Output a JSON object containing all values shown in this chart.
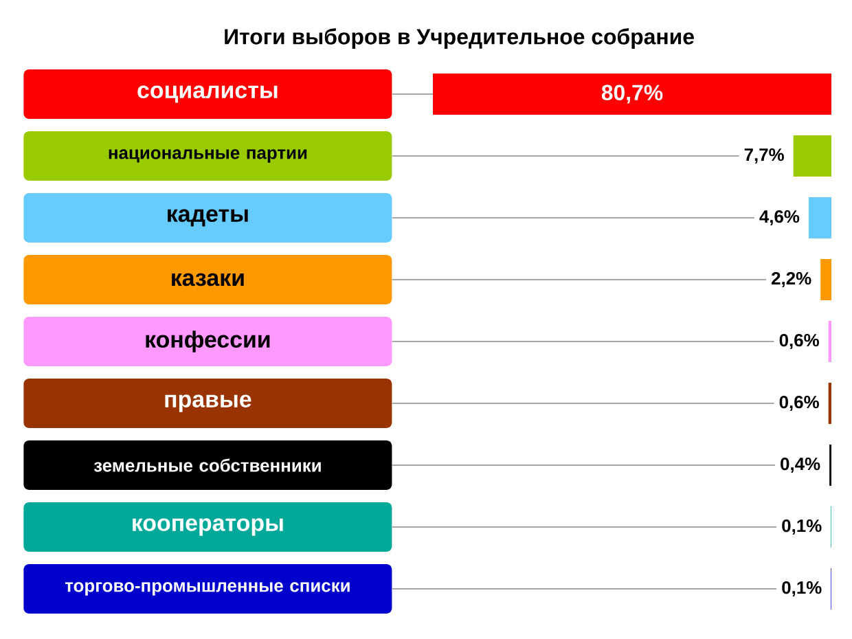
{
  "chart_data": {
    "type": "bar",
    "orientation": "horizontal",
    "title": "Итоги выборов в Учредительное собрание",
    "categories": [
      "социалисты",
      "национальные партии",
      "кадеты",
      "казаки",
      "конфессии",
      "правые",
      "земельные собственники",
      "кооператоры",
      "торгово-промышленные списки"
    ],
    "values": [
      80.7,
      7.7,
      4.6,
      2.2,
      0.6,
      0.6,
      0.4,
      0.1,
      0.1
    ],
    "value_labels": [
      "80,7%",
      "7,7%",
      "4,6%",
      "2,2%",
      "0,6%",
      "0,6%",
      "0,4%",
      "0,1%",
      "0,1%"
    ],
    "colors": [
      "#ff0000",
      "#99cc00",
      "#66ccff",
      "#ff9900",
      "#ff99ff",
      "#993300",
      "#000000",
      "#00a89a",
      "#0000cc"
    ]
  }
}
